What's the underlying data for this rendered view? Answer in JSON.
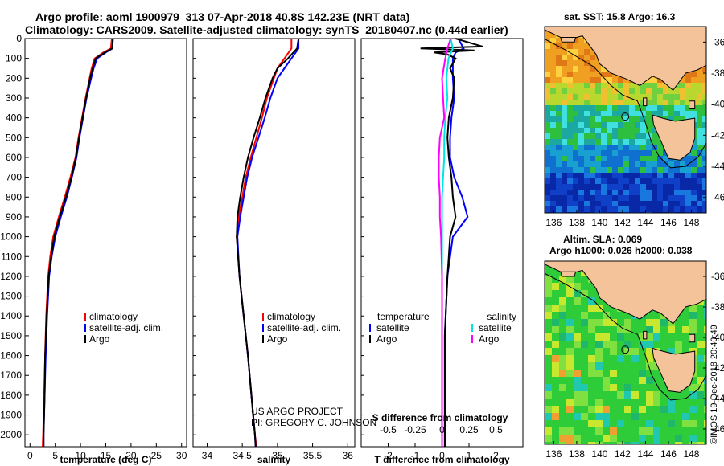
{
  "header": {
    "title_line1": "Argo profile: aoml 1900979_313 07-Apr-2018 40.8S 142.23E (NRT data)",
    "title_line2": "Climatology: CARS2009. Satellite-adjusted climatology: synTS_20180407.nc (0.44d earlier)"
  },
  "colors": {
    "climatology": "#ff0000",
    "satellite": "#0000ff",
    "argo": "#000000",
    "satellite_salinity": "#00e5e5",
    "salinity_diff": "#ff00ff",
    "land": "#f5c39a",
    "map_sea": "#22cc22"
  },
  "credits": {
    "line1": "US ARGO PROJECT",
    "line2": "PI: GREGORY C. JOHNSON",
    "stamp": "©IMOS 19-Dec-2018 20:40:49"
  },
  "maps": {
    "sst_title": "sat. SST: 15.8 Argo: 16.3",
    "sla_title1": "Altim. SLA: 0.069",
    "sla_title2": "Argo h1000: 0.026 h2000: 0.038",
    "lon_ticks": [
      "136",
      "138",
      "140",
      "142",
      "144",
      "146",
      "148"
    ],
    "lat_ticks": [
      "-36",
      "-38",
      "-40",
      "-42",
      "-44",
      "-46"
    ],
    "marker": {
      "lon": 142.23,
      "lat": -40.8
    }
  },
  "chart_data": [
    {
      "type": "line",
      "xlabel": "temperature (deg C)",
      "ylabel": "",
      "xlim": [
        -1,
        31
      ],
      "ylim": [
        2060,
        0
      ],
      "x_ticks": [
        "0",
        "5",
        "10",
        "15",
        "20",
        "25",
        "30"
      ],
      "y_ticks": [
        "0",
        "100",
        "200",
        "300",
        "400",
        "500",
        "600",
        "700",
        "800",
        "900",
        "1000",
        "1100",
        "1200",
        "1300",
        "1400",
        "1500",
        "1600",
        "1700",
        "1800",
        "1900",
        "2000"
      ],
      "legend": [
        "climatology",
        "satellite-adj. clim.",
        "Argo"
      ],
      "legend_position": "lower-right",
      "series": [
        {
          "name": "climatology",
          "depth": [
            0,
            50,
            70,
            100,
            150,
            200,
            300,
            400,
            500,
            600,
            700,
            800,
            900,
            1000,
            1100,
            1200,
            1400,
            1600,
            1800,
            2000,
            2060
          ],
          "values": [
            16.2,
            16.0,
            14.5,
            12.8,
            12.2,
            11.8,
            11.0,
            10.3,
            9.6,
            9.0,
            8.0,
            6.9,
            5.7,
            4.6,
            4.0,
            3.6,
            3.2,
            3.0,
            2.8,
            2.6,
            2.5
          ]
        },
        {
          "name": "satellite-adj. clim.",
          "depth": [
            0,
            50,
            70,
            100,
            150,
            200,
            300,
            400,
            500,
            600,
            700,
            800,
            900,
            1000,
            1100,
            1200,
            1400,
            1600,
            1800,
            2000,
            2060
          ],
          "values": [
            16.4,
            16.3,
            15.0,
            13.3,
            12.6,
            12.1,
            11.2,
            10.5,
            9.8,
            9.2,
            8.3,
            7.3,
            6.1,
            5.0,
            4.3,
            3.8,
            3.4,
            3.1,
            2.9,
            2.7,
            2.7
          ]
        },
        {
          "name": "Argo",
          "depth": [
            0,
            50,
            70,
            100,
            150,
            200,
            300,
            400,
            500,
            600,
            700,
            800,
            900,
            1000,
            1100,
            1200,
            1400,
            1600,
            1800,
            2000,
            2060
          ],
          "values": [
            16.4,
            16.3,
            14.8,
            13.0,
            12.4,
            11.9,
            11.1,
            10.4,
            9.7,
            9.1,
            8.2,
            7.1,
            5.9,
            4.8,
            4.2,
            3.7,
            3.3,
            3.0,
            2.9,
            2.7,
            2.7
          ]
        }
      ]
    },
    {
      "type": "line",
      "xlabel": "salinity",
      "ylabel": "",
      "xlim": [
        33.8,
        36.1
      ],
      "ylim": [
        2060,
        0
      ],
      "x_ticks": [
        "34",
        "34.5",
        "35",
        "35.5",
        "36"
      ],
      "legend": [
        "climatology",
        "satellite-adj. clim.",
        "Argo"
      ],
      "legend_position": "lower-right",
      "series": [
        {
          "name": "climatology",
          "depth": [
            0,
            50,
            100,
            150,
            200,
            300,
            400,
            500,
            600,
            700,
            800,
            900,
            1000,
            1200,
            1400,
            1600,
            1800,
            2000,
            2060
          ],
          "values": [
            35.2,
            35.2,
            35.1,
            35.0,
            34.95,
            34.85,
            34.78,
            34.7,
            34.62,
            34.55,
            34.5,
            34.45,
            34.42,
            34.46,
            34.52,
            34.58,
            34.63,
            34.68,
            34.7
          ]
        },
        {
          "name": "satellite-adj. clim.",
          "depth": [
            0,
            50,
            100,
            150,
            200,
            300,
            400,
            500,
            600,
            700,
            800,
            900,
            1000,
            1200,
            1400,
            1600,
            1800,
            2000,
            2060
          ],
          "values": [
            35.3,
            35.3,
            35.2,
            35.1,
            35.0,
            34.9,
            34.82,
            34.73,
            34.64,
            34.57,
            34.52,
            34.47,
            34.43,
            34.46,
            34.52,
            34.58,
            34.63,
            34.68,
            34.69
          ]
        },
        {
          "name": "Argo",
          "depth": [
            0,
            50,
            100,
            150,
            200,
            300,
            400,
            500,
            600,
            700,
            800,
            900,
            1000,
            1200,
            1400,
            1600,
            1800,
            2000,
            2060
          ],
          "values": [
            35.3,
            35.28,
            35.15,
            35.0,
            34.93,
            34.83,
            34.75,
            34.66,
            34.58,
            34.52,
            34.47,
            34.43,
            34.42,
            34.46,
            34.52,
            34.58,
            34.63,
            34.68,
            34.69
          ]
        }
      ]
    },
    {
      "type": "line",
      "xlabel": "T difference from climatology",
      "xlabel_top": "S difference from climatology",
      "ylabel": "",
      "xlim": [
        -3,
        3
      ],
      "ylim": [
        2060,
        0
      ],
      "x_ticks": [
        "-2",
        "-1",
        "0",
        "1",
        "2"
      ],
      "x_ticks_top": [
        "-0.5",
        "-0.25",
        "0",
        "0.25",
        "0.5"
      ],
      "legend_left": {
        "title": "temperature",
        "items": [
          "satellite",
          "Argo"
        ]
      },
      "legend_right": {
        "title": "salinity",
        "items": [
          "satellite",
          "Argo"
        ]
      },
      "legend_position": "lower",
      "series": [
        {
          "name": "satellite",
          "depth": [
            0,
            50,
            70,
            100,
            200,
            300,
            400,
            500,
            600,
            700,
            800,
            900,
            1000,
            1200,
            1500,
            1800,
            2060
          ],
          "values": [
            0.6,
            0.8,
            0.5,
            0.4,
            0.4,
            0.45,
            0.35,
            0.3,
            0.3,
            0.45,
            0.75,
            0.95,
            0.4,
            0.2,
            0.1,
            0.1,
            0.1
          ]
        },
        {
          "name": "Argo",
          "depth": [
            0,
            40,
            50,
            60,
            70,
            80,
            100,
            150,
            200,
            300,
            400,
            500,
            600,
            700,
            800,
            900,
            1000,
            1200,
            1500,
            1800,
            2060
          ],
          "values": [
            0.5,
            1.5,
            -0.8,
            1.2,
            -0.3,
            0.2,
            0.5,
            0.3,
            0.45,
            0.4,
            0.25,
            0.2,
            0.25,
            0.35,
            0.4,
            0.5,
            0.3,
            0.2,
            0.1,
            0.1,
            0.1
          ]
        },
        {
          "name": "satellite salinity",
          "depth": [
            0,
            50,
            100,
            200,
            300,
            400,
            500,
            600,
            700,
            800,
            900,
            1000,
            1200,
            1500,
            1800,
            2060
          ],
          "values": [
            0.08,
            0.1,
            0.06,
            0.04,
            0.05,
            0.03,
            0.02,
            0.02,
            0.01,
            0.0,
            0.0,
            0.0,
            0.0,
            0.0,
            0.0,
            0.0
          ]
        },
        {
          "name": "Argo salinity",
          "depth": [
            0,
            50,
            100,
            200,
            300,
            400,
            500,
            600,
            700,
            800,
            900,
            1000,
            1200,
            1500,
            1800,
            2060
          ],
          "values": [
            0.08,
            0.05,
            0.03,
            0.0,
            0.01,
            0.02,
            -0.02,
            -0.03,
            -0.03,
            -0.02,
            -0.02,
            -0.01,
            0.0,
            0.0,
            0.0,
            0.0
          ]
        }
      ]
    }
  ]
}
